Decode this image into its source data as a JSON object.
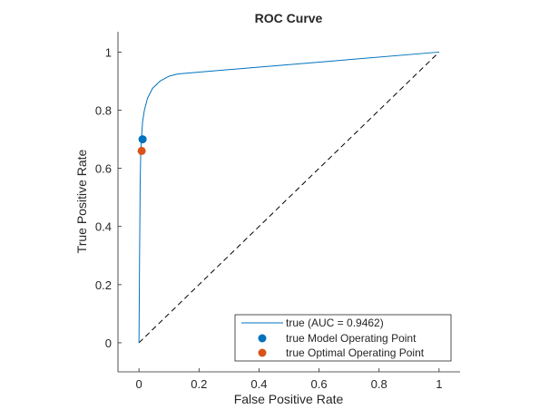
{
  "chart_data": {
    "type": "line",
    "title": "ROC Curve",
    "xlabel": "False Positive Rate",
    "ylabel": "True Positive Rate",
    "xlim": [
      -0.07,
      1.07
    ],
    "ylim": [
      -0.1,
      1.07
    ],
    "xticks": [
      0,
      0.2,
      0.4,
      0.6,
      0.8,
      1
    ],
    "xtick_labels": [
      "0",
      "0.2",
      "0.4",
      "0.6",
      "0.8",
      "1"
    ],
    "yticks": [
      0,
      0.2,
      0.4,
      0.6,
      0.8,
      1
    ],
    "ytick_labels": [
      "0",
      "0.2",
      "0.4",
      "0.6",
      "0.8",
      "1"
    ],
    "grid": false,
    "legend_position": "bottom-right",
    "series": [
      {
        "name": "true (AUC = 0.9462)",
        "kind": "line",
        "color": "#0072BD",
        "x": [
          0,
          0.002,
          0.004,
          0.006,
          0.008,
          0.012,
          0.018,
          0.028,
          0.045,
          0.07,
          0.1,
          0.13,
          1
        ],
        "y": [
          0,
          0.3,
          0.55,
          0.66,
          0.7,
          0.76,
          0.8,
          0.84,
          0.875,
          0.9,
          0.917,
          0.925,
          1
        ]
      },
      {
        "name": "true Model Operating Point",
        "kind": "point",
        "color": "#0072BD",
        "x": [
          0.012
        ],
        "y": [
          0.7
        ]
      },
      {
        "name": "true Optimal Operating Point",
        "kind": "point",
        "color": "#D95319",
        "x": [
          0.009
        ],
        "y": [
          0.66
        ]
      }
    ],
    "reference_line": {
      "x": [
        0,
        1
      ],
      "y": [
        0,
        1
      ],
      "color": "#000000",
      "style": "dashed"
    }
  }
}
